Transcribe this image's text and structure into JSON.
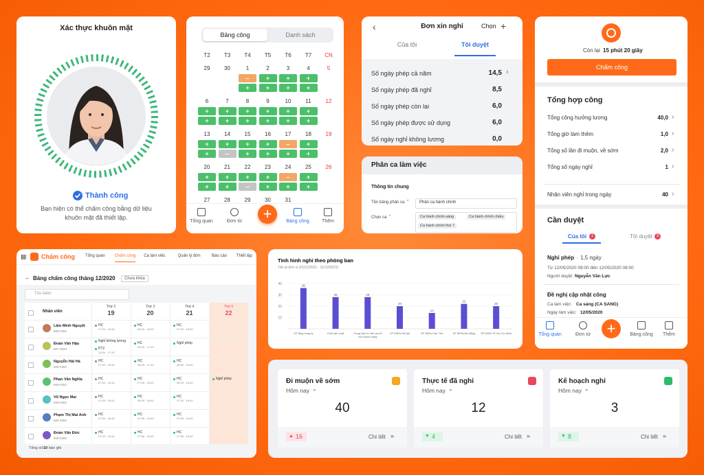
{
  "face": {
    "title": "Xác thực khuôn mặt",
    "status": "Thành công",
    "message": "Bạn hiện có thể chấm công bằng dữ liệu khuôn mặt đã thiết lập."
  },
  "calendar": {
    "tabs": [
      "Bảng công",
      "Danh sách"
    ],
    "weekdays": [
      "T2",
      "T3",
      "T4",
      "T5",
      "T6",
      "T7",
      "CN"
    ],
    "weeks": [
      {
        "days": [
          29,
          30,
          1,
          2,
          3,
          4,
          5
        ],
        "chips": [
          [],
          [],
          [
            {
              "text": "–",
              "color": "#f2a766"
            },
            {
              "text": "+",
              "color": "#4cbf6b"
            }
          ],
          [
            {
              "text": "+",
              "color": "#4cbf6b"
            },
            {
              "text": "+",
              "color": "#4cbf6b"
            }
          ],
          [
            {
              "text": "+",
              "color": "#4cbf6b"
            },
            {
              "text": "+",
              "color": "#4cbf6b"
            }
          ],
          [
            {
              "text": "+",
              "color": "#4cbf6b"
            },
            {
              "text": "+",
              "color": "#4cbf6b"
            }
          ],
          []
        ]
      },
      {
        "days": [
          6,
          7,
          8,
          9,
          10,
          11,
          12
        ],
        "chips": [
          [
            {
              "text": "+",
              "color": "#4cbf6b"
            },
            {
              "text": "+",
              "color": "#4cbf6b"
            }
          ],
          [
            {
              "text": "+",
              "color": "#4cbf6b"
            },
            {
              "text": "+",
              "color": "#4cbf6b"
            }
          ],
          [
            {
              "text": "+",
              "color": "#4cbf6b"
            },
            {
              "text": "+",
              "color": "#4cbf6b"
            }
          ],
          [
            {
              "text": "+",
              "color": "#4cbf6b"
            },
            {
              "text": "+",
              "color": "#4cbf6b"
            }
          ],
          [
            {
              "text": "+",
              "color": "#4cbf6b"
            },
            {
              "text": "+",
              "color": "#4cbf6b"
            }
          ],
          [
            {
              "text": "+",
              "color": "#4cbf6b"
            },
            {
              "text": "+",
              "color": "#4cbf6b"
            }
          ],
          []
        ]
      },
      {
        "days": [
          13,
          14,
          15,
          16,
          17,
          18,
          19
        ],
        "chips": [
          [
            {
              "text": "+",
              "color": "#4cbf6b"
            },
            {
              "text": "+",
              "color": "#4cbf6b"
            }
          ],
          [
            {
              "text": "+",
              "color": "#4cbf6b"
            },
            {
              "text": "--",
              "color": "#c4c4c4"
            }
          ],
          [
            {
              "text": "+",
              "color": "#4cbf6b"
            },
            {
              "text": "+",
              "color": "#4cbf6b"
            }
          ],
          [
            {
              "text": "+",
              "color": "#4cbf6b"
            },
            {
              "text": "+",
              "color": "#4cbf6b"
            }
          ],
          [
            {
              "text": "–",
              "color": "#f2a766"
            },
            {
              "text": "+",
              "color": "#4cbf6b"
            }
          ],
          [
            {
              "text": "+",
              "color": "#4cbf6b"
            },
            {
              "text": "+",
              "color": "#4cbf6b"
            }
          ],
          []
        ]
      },
      {
        "days": [
          20,
          21,
          22,
          23,
          24,
          25,
          26
        ],
        "chips": [
          [
            {
              "text": "+",
              "color": "#4cbf6b"
            },
            {
              "text": "+",
              "color": "#4cbf6b"
            }
          ],
          [
            {
              "text": "+",
              "color": "#4cbf6b"
            },
            {
              "text": "+",
              "color": "#4cbf6b"
            }
          ],
          [
            {
              "text": "+",
              "color": "#4cbf6b"
            },
            {
              "text": "--",
              "color": "#c4c4c4"
            }
          ],
          [
            {
              "text": "+",
              "color": "#4cbf6b"
            },
            {
              "text": "+",
              "color": "#4cbf6b"
            }
          ],
          [
            {
              "text": "–",
              "color": "#f2a766"
            },
            {
              "text": "+",
              "color": "#4cbf6b"
            }
          ],
          [
            {
              "text": "+",
              "color": "#4cbf6b"
            },
            {
              "text": "+",
              "color": "#4cbf6b"
            }
          ],
          []
        ]
      },
      {
        "days": [
          27,
          28,
          29,
          30,
          31
        ]
      }
    ],
    "nav": [
      "Tổng quan",
      "Đơn từ",
      "Bảng công",
      "Thêm"
    ],
    "nav_active": 2
  },
  "leave": {
    "title": "Đơn xin nghỉ",
    "action": "Chọn",
    "tabs": [
      "Của tôi",
      "Tôi duyệt"
    ],
    "rows": [
      {
        "label": "Số ngày phép cả năm",
        "value": "14,5"
      },
      {
        "label": "Số ngày phép đã nghỉ",
        "value": "8,5"
      },
      {
        "label": "Số ngày phép còn lại",
        "value": "6,0"
      },
      {
        "label": "Số ngày phép được sử dụng",
        "value": "6,0"
      },
      {
        "label": "Số ngày nghỉ không lương",
        "value": "0,0"
      }
    ]
  },
  "shift": {
    "title": "Phân ca làm việc",
    "section": "Thông tin chung",
    "name_label": "Tên bảng phân ca",
    "name_value": "Phân ca hành chính",
    "shift_label": "Chọn ca",
    "shifts": [
      "Ca hành chính sáng",
      "Ca hành chính chiều",
      "Ca hành chính thứ 7"
    ]
  },
  "mobile": {
    "remaining_prefix": "Còn lại",
    "remaining": "15 phút 20 giây",
    "button": "Chấm công",
    "summary_title": "Tổng hợp công",
    "summary": [
      {
        "label": "Tổng công hưởng lương",
        "value": "40,0"
      },
      {
        "label": "Tổng giờ làm thêm",
        "value": "1,0"
      },
      {
        "label": "Tổng số lần đi muộn, về sớm",
        "value": "2,0"
      },
      {
        "label": "Tổng số ngày nghỉ",
        "value": "1"
      }
    ],
    "absent": {
      "label": "Nhân viên nghỉ trong ngày",
      "value": "40"
    },
    "approval_title": "Cần duyệt",
    "tabs": [
      {
        "label": "Của tôi",
        "count": "1"
      },
      {
        "label": "Tôi duyệt",
        "count": "3"
      }
    ],
    "request1": {
      "title": "Nghỉ phép",
      "amount": "1,5 ngày",
      "range": "Từ 12/05/2020 08:00 đến 12/05/2020 08:00",
      "approver_label": "Người duyệt:",
      "approver": "Nguyễn Văn Lực"
    },
    "request2": {
      "title": "Đề nghị cập nhật công",
      "shift_label": "Ca làm việc:",
      "shift": "Ca sáng (CA SANG)",
      "date_label": "Ngày làm việc:",
      "date": "12/05/2020"
    },
    "nav": [
      "Tổng quan",
      "Đơn từ",
      "Bảng công",
      "Thêm"
    ],
    "nav_active": 0
  },
  "table": {
    "app": "Chấm công",
    "menu": [
      "Tổng quan",
      "Chấm công",
      "Ca làm việc",
      "Quản lý đơn",
      "Báo cáo",
      "Thiết lập"
    ],
    "menu_active": 1,
    "title": "Bảng chấm công tháng 12/2020",
    "badge": "Chưa khóa",
    "search": "Tìm kiếm",
    "employee_header": "Nhân viên",
    "days": [
      {
        "weekday": "Thứ 2",
        "day": "19"
      },
      {
        "weekday": "Thứ 3",
        "day": "20"
      },
      {
        "weekday": "Thứ 4",
        "day": "21"
      },
      {
        "weekday": "Thứ 5",
        "day": "22"
      }
    ],
    "rows": [
      {
        "name": "Lâm Minh Nguyệt",
        "code": "809-0382",
        "cells": [
          [
            {
              "text": "HC",
              "time": "07:30 - 18:30"
            }
          ],
          [
            {
              "text": "HC",
              "time": "08:05 - 18:30"
            }
          ],
          [
            {
              "text": "HC",
              "time": "07:30 - 18:30"
            }
          ],
          []
        ]
      },
      {
        "name": "Đoàn Văn Hậu",
        "code": "807-3920",
        "cells": [
          [
            {
              "text": "Nghỉ không lương"
            },
            {
              "text": "PT2",
              "time": "13:00 - 17:30"
            }
          ],
          [
            {
              "text": "HC",
              "time": "09:32 - 17:40"
            }
          ],
          [
            {
              "text": "Nghỉ phép"
            }
          ],
          []
        ]
      },
      {
        "name": "Nguyễn Hải Hà",
        "code": "809-0382",
        "cells": [
          [
            {
              "text": "HC",
              "time": "07:30 - 18:40"
            }
          ],
          [
            {
              "text": "HC",
              "time": "08:05 - 17:40"
            }
          ],
          [
            {
              "text": "HC",
              "time": "08:05 - 18:40"
            }
          ],
          []
        ]
      },
      {
        "name": "Phan Văn Nghĩa",
        "code": "809-0382",
        "cells": [
          [
            {
              "text": "HC",
              "time": "07:30 - 18:40"
            }
          ],
          [
            {
              "text": "HC",
              "time": "07:30 - 18:40"
            }
          ],
          [
            {
              "text": "HC",
              "time": "08:05 - 18:40"
            }
          ],
          [
            {
              "text": "Nghỉ phép"
            }
          ]
        ]
      },
      {
        "name": "Vũ Ngọc Mai",
        "code": "809-0382",
        "cells": [
          [
            {
              "text": "HC",
              "time": "07:30 - 18:40"
            }
          ],
          [
            {
              "text": "HC",
              "time": "08:05 - 18:40"
            }
          ],
          [
            {
              "text": "HC",
              "time": "07:30 - 18:40"
            }
          ],
          []
        ]
      },
      {
        "name": "Phạm Thị Mai Anh",
        "code": "809-0382",
        "cells": [
          [
            {
              "text": "HC",
              "time": "07:30 - 18:40"
            }
          ],
          [
            {
              "text": "HC",
              "time": "07:58 - 18:40"
            }
          ],
          [
            {
              "text": "HC",
              "time": "07:58 - 18:40"
            }
          ],
          []
        ]
      },
      {
        "name": "Đoàn Văn Đức",
        "code": "809-0382",
        "cells": [
          [
            {
              "text": "HC",
              "time": "07:30 - 18:40"
            }
          ],
          [
            {
              "text": "HC",
              "time": "07:58 - 18:40"
            }
          ],
          [
            {
              "text": "HC",
              "time": "07:58 - 18:40"
            }
          ],
          []
        ]
      }
    ],
    "total_label": "Tổng số:",
    "total": "10",
    "total_unit": "bản ghi"
  },
  "chart_data": {
    "type": "bar",
    "title": "Tình hình nghỉ theo phòng ban",
    "subtitle": "Tất cả đơn vị (01/12/2021 - 31/12/2021)",
    "categories": [
      "VP tổng công ty",
      "Khối sản xuất",
      "Trung tâm tư vấn và hỗ trợ khách hàng",
      "VP MISA Hà Nội",
      "VP MISA Cần Thơ",
      "VP MISA Đà Nẵng",
      "VP MISA TP Hồ Chí Minh"
    ],
    "values": [
      36,
      28,
      28,
      20,
      14,
      22,
      20
    ],
    "color": "#5a4fd3",
    "ylim": [
      0,
      40
    ],
    "yticks": [
      10,
      20,
      30,
      40
    ],
    "grid": true
  },
  "cards": [
    {
      "title": "Đi muộn về sớm",
      "period": "Hôm nay",
      "value": "40",
      "change": "16",
      "trend": "up",
      "icon_color": "#f5a623",
      "link": "Chi tiết"
    },
    {
      "title": "Thực tế đã nghỉ",
      "period": "Hôm nay",
      "value": "12",
      "change": "4",
      "trend": "down",
      "icon_color": "#e8485a",
      "link": "Chi tiết"
    },
    {
      "title": "Kế hoạch nghỉ",
      "period": "Hôm nay",
      "value": "3",
      "change": "8",
      "trend": "down",
      "icon_color": "#2dbb6a",
      "link": "Chi tiết"
    }
  ]
}
